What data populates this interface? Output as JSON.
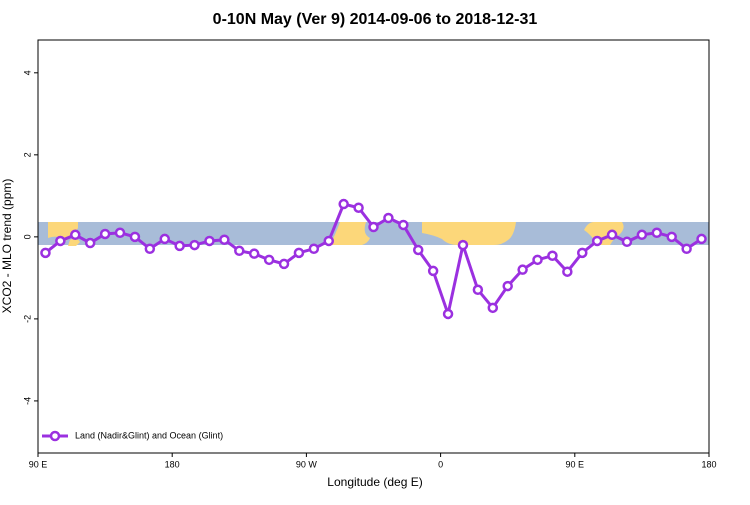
{
  "chart_data": {
    "type": "line",
    "title": "0-10N May (Ver 9)   2014-09-06 to 2018-12-31",
    "xlabel": "Longitude (deg E)",
    "ylabel": "XCO2 - MLO trend (ppm)",
    "x": [
      95,
      105,
      115,
      125,
      135,
      145,
      155,
      165,
      175,
      185,
      195,
      205,
      215,
      225,
      235,
      245,
      255,
      265,
      275,
      285,
      295,
      305,
      315,
      325,
      335,
      345,
      355,
      365,
      375,
      385,
      395,
      405,
      415,
      425,
      435,
      445,
      455,
      465,
      475,
      485,
      495,
      505,
      515,
      525,
      535
    ],
    "series": [
      {
        "name": "Land (Nadir&Glint) and Ocean (Glint)",
        "color": "#9b30e0",
        "values": [
          -0.39,
          -0.1,
          0.05,
          -0.15,
          0.07,
          0.1,
          0.0,
          -0.29,
          -0.05,
          -0.22,
          -0.2,
          -0.1,
          -0.07,
          -0.34,
          -0.41,
          -0.56,
          -0.66,
          -0.39,
          -0.29,
          -0.1,
          0.8,
          0.71,
          0.24,
          0.46,
          0.29,
          -0.32,
          -0.83,
          -1.88,
          -0.2,
          -1.29,
          -1.73,
          -1.2,
          -0.8,
          -0.56,
          -0.46,
          -0.85,
          -0.39,
          -0.1,
          0.05,
          -0.12,
          0.05,
          0.1,
          0.0,
          -0.29,
          -0.05
        ]
      }
    ],
    "xlim": [
      90,
      540
    ],
    "xticks": [
      {
        "value": 90,
        "label": "90 E"
      },
      180,
      {
        "value": 270,
        "label": "90 W"
      },
      {
        "value": 360,
        "label": "0"
      },
      {
        "value": 450,
        "label": "90 E"
      },
      {
        "value": 540,
        "label": "180"
      }
    ],
    "ylim": [
      -5.27,
      4.8
    ],
    "yticks": [
      -4,
      -2,
      0,
      2,
      4
    ],
    "legend": "bottom-left"
  }
}
